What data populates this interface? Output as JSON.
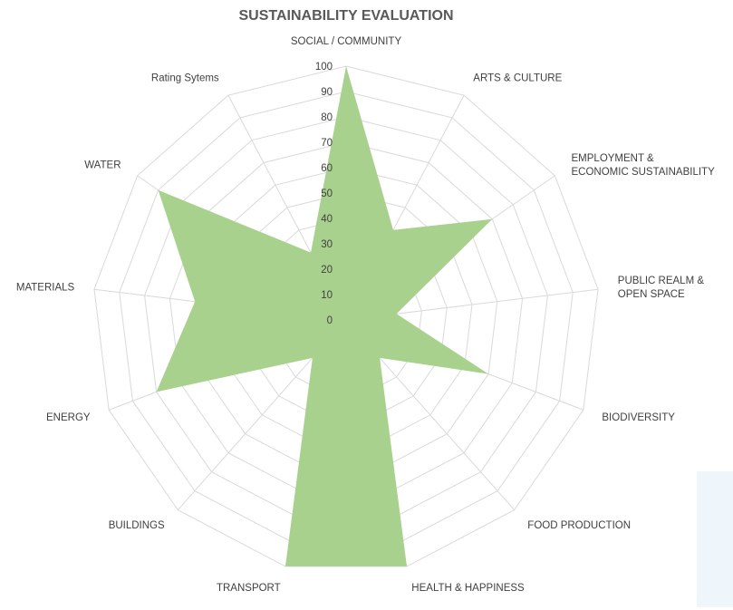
{
  "chart_data": {
    "type": "radar",
    "title": "SUSTAINABILITY EVALUATION",
    "categories": [
      "SOCIAL / COMMUNITY",
      "ARTS & CULTURE",
      "EMPLOYMENT & ECONOMIC SUSTAINABILITY",
      "PUBLIC REALM & OPEN SPACE",
      "BIODIVERSITY",
      "FOOD PRODUCTION",
      "HEALTH & HAPPINESS",
      "TRANSPORT",
      "BUILDINGS",
      "ENERGY",
      "MATERIALS",
      "WATER",
      "Rating Sytems"
    ],
    "label_lines": [
      [
        "SOCIAL / COMMUNITY"
      ],
      [
        "ARTS & CULTURE"
      ],
      [
        "EMPLOYMENT &",
        "ECONOMIC SUSTAINABILITY"
      ],
      [
        "PUBLIC REALM &",
        "OPEN SPACE"
      ],
      [
        "BIODIVERSITY"
      ],
      [
        "FOOD PRODUCTION"
      ],
      [
        "HEALTH & HAPPINESS"
      ],
      [
        "TRANSPORT"
      ],
      [
        "BUILDINGS"
      ],
      [
        "ENERGY"
      ],
      [
        "MATERIALS"
      ],
      [
        "WATER"
      ],
      [
        "Rating Sytems"
      ]
    ],
    "values": [
      100,
      40,
      70,
      20,
      60,
      20,
      100,
      100,
      20,
      80,
      60,
      90,
      30
    ],
    "ticks": [
      0,
      10,
      20,
      30,
      40,
      50,
      60,
      70,
      80,
      90,
      100
    ],
    "rlim": [
      0,
      100
    ],
    "grid": true,
    "legend": "none",
    "colors": {
      "fill": "#a9d18e",
      "grid": "#d9d9d9",
      "text": "#404040",
      "title": "#595959"
    }
  }
}
